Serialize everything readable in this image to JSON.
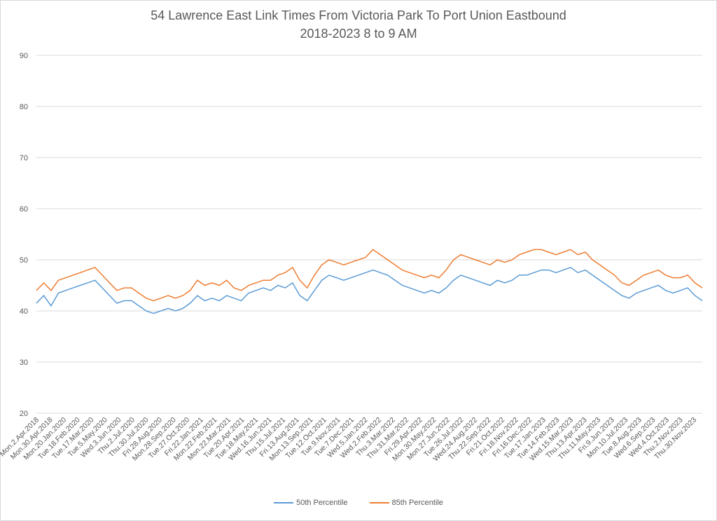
{
  "chart_data": {
    "type": "line",
    "title": "54 Lawrence East Link Times From Victoria Park To Port Union Eastbound",
    "subtitle": "2018-2023 8 to 9 AM",
    "xlabel": "",
    "ylabel": "",
    "ylim": [
      20,
      90
    ],
    "yticks": [
      20,
      30,
      40,
      50,
      60,
      70,
      80,
      90
    ],
    "grid": true,
    "legend_position": "bottom",
    "x_tick_labels": [
      "Mon.2.Apr.2018",
      "Mon.30.Apr.2018",
      "Mon.20.Jan.2020",
      "Tue.18.Feb.2020",
      "Tue.17.Mar.2020",
      "Tue.5.May.2020",
      "Wed.3.Jun.2020",
      "Thu.2.Jul.2020",
      "Thu.30.Jul.2020",
      "Fri.28.Aug.2020",
      "Mon.28.Sep.2020",
      "Tue.27.Oct.2020",
      "Fri.22.Jan.2021",
      "Mon.22.Feb.2021",
      "Mon.22.Mar.2021",
      "Tue.20.Apr.2021",
      "Tue.18.May.2021",
      "Wed.16.Jun.2021",
      "Thu.15.Jul.2021",
      "Fri.13.Aug.2021",
      "Mon.13.Sep.2021",
      "Tue.12.Oct.2021",
      "Tue.9.Nov.2021",
      "Tue.7.Dec.2021",
      "Wed.5.Jan.2022",
      "Wed.2.Feb.2022",
      "Thu.3.Mar.2022",
      "Thu.31.Mar.2022",
      "Fri.29.Apr.2022",
      "Mon.30.May.2022",
      "Mon.27.Jun.2022",
      "Tue.26.Jul.2022",
      "Wed.24.Aug.2022",
      "Thu.22.Sep.2022",
      "Fri.21.Oct.2022",
      "Fri.18.Nov.2022",
      "Fri.16.Dec.2022",
      "Tue.17.Jan.2023",
      "Tue.14.Feb.2023",
      "Wed.15.Mar.2023",
      "Thu.13.Apr.2023",
      "Thu.11.May.2023",
      "Fri.9.Jun.2023",
      "Mon.10.Jul.2023",
      "Tue.8.Aug.2023",
      "Wed.6.Sep.2023",
      "Wed.4.Oct.2023",
      "Thu.2.Nov.2023",
      "Thu.30.Nov.2023"
    ],
    "series": [
      {
        "name": "50th Percentile",
        "color": "#5b9bd5",
        "values": [
          41.5,
          43,
          41,
          43.5,
          44,
          44.5,
          45,
          45.5,
          46,
          44.5,
          43,
          41.5,
          42,
          42,
          41,
          40,
          39.5,
          40,
          40.5,
          40,
          40.5,
          41.5,
          43,
          42,
          42.5,
          42,
          43,
          42.5,
          42,
          43.5,
          44,
          44.5,
          44,
          45,
          44.5,
          45.5,
          43,
          42,
          44,
          46,
          47,
          46.5,
          46,
          46.5,
          47,
          47.5,
          48,
          47.5,
          47,
          46,
          45,
          44.5,
          44,
          43.5,
          44,
          43.5,
          44.5,
          46,
          47,
          46.5,
          46,
          45.5,
          45,
          46,
          45.5,
          46,
          47,
          47,
          47.5,
          48,
          48,
          47.5,
          48,
          48.5,
          47.5,
          48,
          47,
          46,
          45,
          44,
          43,
          42.5,
          43.5,
          44,
          44.5,
          45,
          44,
          43.5,
          44,
          44.5,
          43,
          42
        ]
      },
      {
        "name": "85th Percentile",
        "color": "#ed7d31",
        "values": [
          44,
          45.5,
          44,
          46,
          46.5,
          47,
          47.5,
          48,
          48.5,
          47,
          45.5,
          44,
          44.5,
          44.5,
          43.5,
          42.5,
          42,
          42.5,
          43,
          42.5,
          43,
          44,
          46,
          45,
          45.5,
          45,
          46,
          44.5,
          44,
          45,
          45.5,
          46,
          46,
          47,
          47.5,
          48.5,
          46,
          44.5,
          47,
          49,
          50,
          49.5,
          49,
          49.5,
          50,
          50.5,
          52,
          51,
          50,
          49,
          48,
          47.5,
          47,
          46.5,
          47,
          46.5,
          48,
          50,
          51,
          50.5,
          50,
          49.5,
          49,
          50,
          49.5,
          50,
          51,
          51.5,
          52,
          52,
          51.5,
          51,
          51.5,
          52,
          51,
          51.5,
          50,
          49,
          48,
          47,
          45.5,
          45,
          46,
          47,
          47.5,
          48,
          47,
          46.5,
          46.5,
          47,
          45.5,
          44.5
        ]
      }
    ]
  }
}
